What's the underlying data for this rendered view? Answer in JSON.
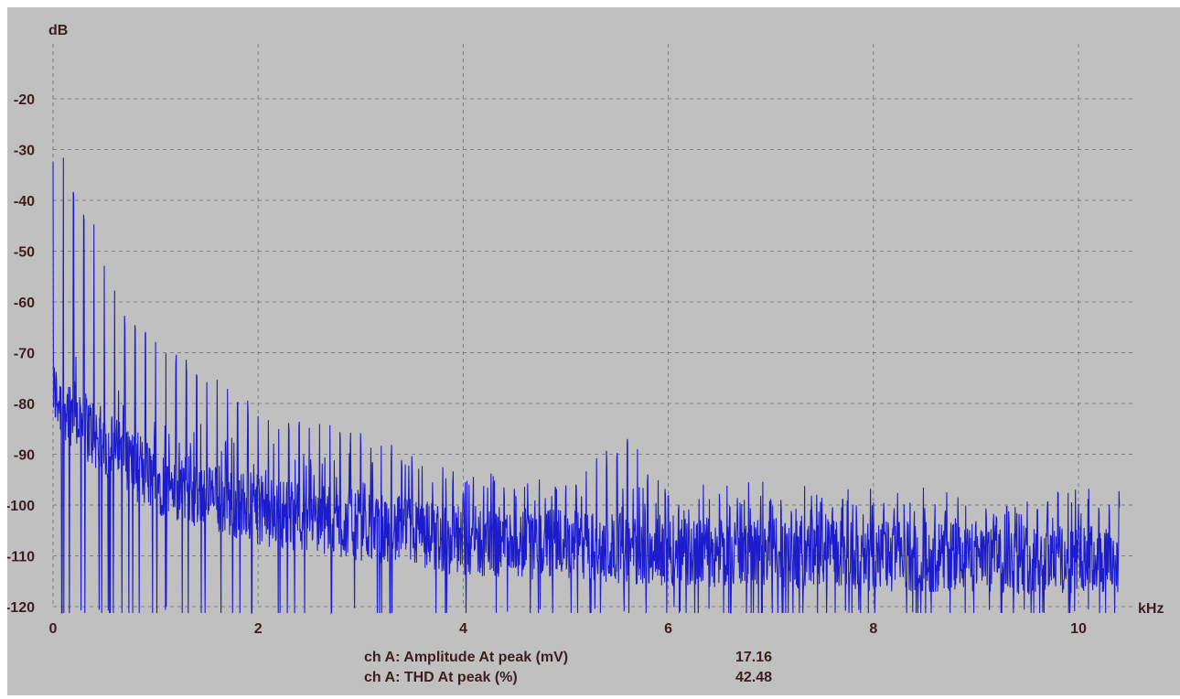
{
  "colors": {
    "panel": "#c0c0c0",
    "grid": "#808080",
    "trace": "#1c1ccc",
    "ink": "#3c1e1e"
  },
  "chart_data": {
    "type": "line",
    "title": "",
    "xlabel": "",
    "ylabel": "",
    "x_unit": "kHz",
    "y_unit": "dB",
    "xlim": [
      0,
      10.45
    ],
    "ylim": [
      -120,
      -10
    ],
    "x_ticks": [
      0,
      2,
      4,
      6,
      8,
      10
    ],
    "y_ticks": [
      -20,
      -30,
      -40,
      -50,
      -60,
      -70,
      -80,
      -90,
      -100,
      -110,
      -120
    ],
    "grid": true,
    "legend": "none",
    "series": [
      {
        "harmonic_spacing_khz": 0.1,
        "peaks": [
          {
            "x": 0.03,
            "y": -33
          },
          {
            "x": 0.1,
            "y": -32
          },
          {
            "x": 0.2,
            "y": -38
          },
          {
            "x": 0.3,
            "y": -42
          },
          {
            "x": 0.4,
            "y": -46
          },
          {
            "x": 0.5,
            "y": -51
          },
          {
            "x": 0.6,
            "y": -57
          },
          {
            "x": 0.7,
            "y": -63
          },
          {
            "x": 0.8,
            "y": -65
          },
          {
            "x": 0.9,
            "y": -66
          },
          {
            "x": 1.0,
            "y": -67
          },
          {
            "x": 1.1,
            "y": -69
          },
          {
            "x": 1.2,
            "y": -71
          },
          {
            "x": 1.3,
            "y": -73
          },
          {
            "x": 1.5,
            "y": -76
          },
          {
            "x": 2.0,
            "y": -82
          },
          {
            "x": 2.5,
            "y": -85
          },
          {
            "x": 3.0,
            "y": -87
          },
          {
            "x": 3.5,
            "y": -92
          },
          {
            "x": 4.0,
            "y": -96
          },
          {
            "x": 4.5,
            "y": -97
          },
          {
            "x": 5.0,
            "y": -98
          },
          {
            "x": 5.6,
            "y": -87
          },
          {
            "x": 6.0,
            "y": -99
          },
          {
            "x": 7.0,
            "y": -100
          },
          {
            "x": 8.0,
            "y": -101
          },
          {
            "x": 9.0,
            "y": -102
          },
          {
            "x": 10.0,
            "y": -98
          },
          {
            "x": 10.4,
            "y": -101
          }
        ],
        "noise_floor": [
          {
            "x": 0.0,
            "y": -78
          },
          {
            "x": 0.5,
            "y": -88
          },
          {
            "x": 1.0,
            "y": -95
          },
          {
            "x": 2.0,
            "y": -101
          },
          {
            "x": 3.0,
            "y": -104
          },
          {
            "x": 4.0,
            "y": -107
          },
          {
            "x": 5.0,
            "y": -108
          },
          {
            "x": 6.0,
            "y": -109
          },
          {
            "x": 8.0,
            "y": -110
          },
          {
            "x": 10.4,
            "y": -111
          }
        ]
      }
    ]
  },
  "readouts": [
    {
      "label": "ch A: Amplitude At peak (mV)",
      "value": "17.16"
    },
    {
      "label": "ch A: THD At peak (%)",
      "value": "42.48"
    }
  ]
}
